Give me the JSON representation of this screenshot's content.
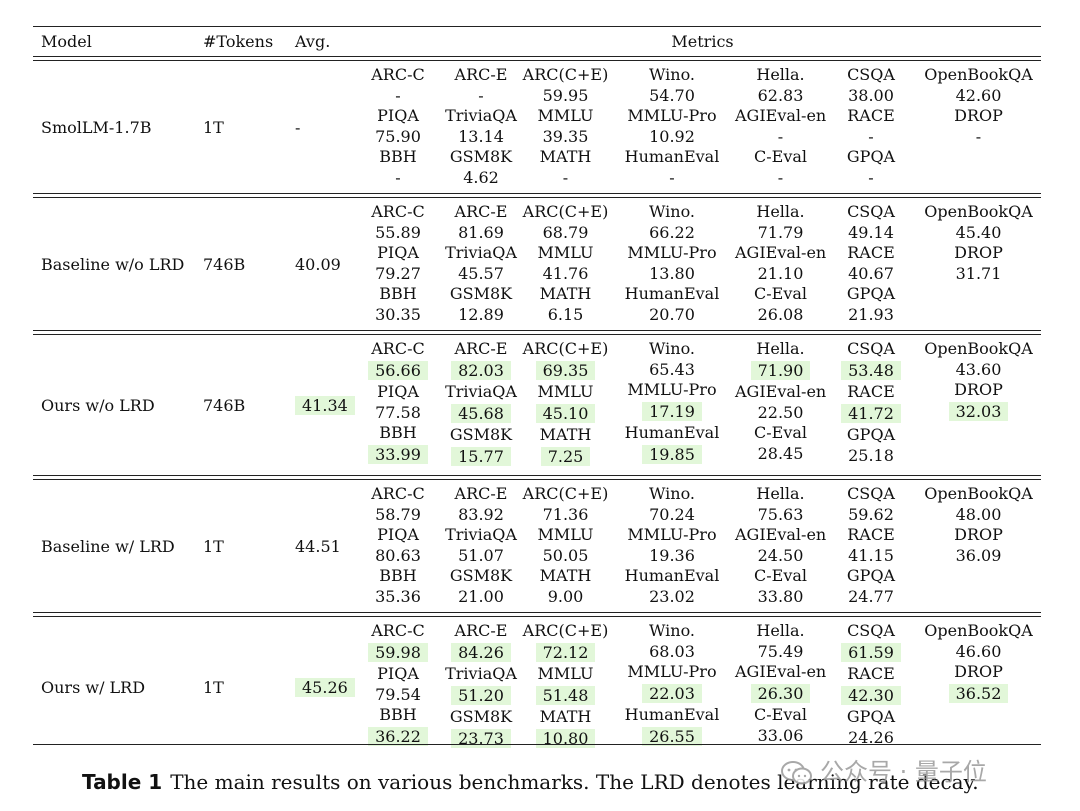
{
  "table": {
    "headers": {
      "model": "Model",
      "tokens": "#Tokens",
      "avg": "Avg.",
      "metrics": "Metrics"
    },
    "rows": [
      {
        "model": "SmolLM-1.7B",
        "tokens": "1T",
        "avg": "-",
        "avg_hl": false,
        "metrics": [
          [
            {
              "n": "ARC-C",
              "v": "-"
            },
            {
              "n": "ARC-E",
              "v": "-"
            },
            {
              "n": "ARC(C+E)",
              "v": "59.95"
            },
            {
              "n": "Wino.",
              "v": "54.70"
            },
            {
              "n": "Hella.",
              "v": "62.83"
            },
            {
              "n": "CSQA",
              "v": "38.00"
            },
            {
              "n": "OpenBookQA",
              "v": "42.60"
            }
          ],
          [
            {
              "n": "PIQA",
              "v": "75.90"
            },
            {
              "n": "TriviaQA",
              "v": "13.14"
            },
            {
              "n": "MMLU",
              "v": "39.35"
            },
            {
              "n": "MMLU-Pro",
              "v": "10.92"
            },
            {
              "n": "AGIEval-en",
              "v": "-"
            },
            {
              "n": "RACE",
              "v": "-"
            },
            {
              "n": "DROP",
              "v": "-"
            }
          ],
          [
            {
              "n": "BBH",
              "v": "-"
            },
            {
              "n": "GSM8K",
              "v": "4.62"
            },
            {
              "n": "MATH",
              "v": "-"
            },
            {
              "n": "HumanEval",
              "v": "-"
            },
            {
              "n": "C-Eval",
              "v": "-"
            },
            {
              "n": "GPQA",
              "v": "-"
            }
          ]
        ]
      },
      {
        "model": "Baseline w/o LRD",
        "tokens": "746B",
        "avg": "40.09",
        "avg_hl": false,
        "metrics": [
          [
            {
              "n": "ARC-C",
              "v": "55.89"
            },
            {
              "n": "ARC-E",
              "v": "81.69"
            },
            {
              "n": "ARC(C+E)",
              "v": "68.79"
            },
            {
              "n": "Wino.",
              "v": "66.22"
            },
            {
              "n": "Hella.",
              "v": "71.79"
            },
            {
              "n": "CSQA",
              "v": "49.14"
            },
            {
              "n": "OpenBookQA",
              "v": "45.40"
            }
          ],
          [
            {
              "n": "PIQA",
              "v": "79.27"
            },
            {
              "n": "TriviaQA",
              "v": "45.57"
            },
            {
              "n": "MMLU",
              "v": "41.76"
            },
            {
              "n": "MMLU-Pro",
              "v": "13.80"
            },
            {
              "n": "AGIEval-en",
              "v": "21.10"
            },
            {
              "n": "RACE",
              "v": "40.67"
            },
            {
              "n": "DROP",
              "v": "31.71"
            }
          ],
          [
            {
              "n": "BBH",
              "v": "30.35"
            },
            {
              "n": "GSM8K",
              "v": "12.89"
            },
            {
              "n": "MATH",
              "v": "6.15"
            },
            {
              "n": "HumanEval",
              "v": "20.70"
            },
            {
              "n": "C-Eval",
              "v": "26.08"
            },
            {
              "n": "GPQA",
              "v": "21.93"
            }
          ]
        ]
      },
      {
        "model": "Ours w/o LRD",
        "tokens": "746B",
        "avg": "41.34",
        "avg_hl": true,
        "metrics": [
          [
            {
              "n": "ARC-C",
              "v": "56.66",
              "hl": true
            },
            {
              "n": "ARC-E",
              "v": "82.03",
              "hl": true
            },
            {
              "n": "ARC(C+E)",
              "v": "69.35",
              "hl": true
            },
            {
              "n": "Wino.",
              "v": "65.43"
            },
            {
              "n": "Hella.",
              "v": "71.90",
              "hl": true
            },
            {
              "n": "CSQA",
              "v": "53.48",
              "hl": true
            },
            {
              "n": "OpenBookQA",
              "v": "43.60"
            }
          ],
          [
            {
              "n": "PIQA",
              "v": "77.58"
            },
            {
              "n": "TriviaQA",
              "v": "45.68",
              "hl": true
            },
            {
              "n": "MMLU",
              "v": "45.10",
              "hl": true
            },
            {
              "n": "MMLU-Pro",
              "v": "17.19",
              "hl": true
            },
            {
              "n": "AGIEval-en",
              "v": "22.50"
            },
            {
              "n": "RACE",
              "v": "41.72",
              "hl": true
            },
            {
              "n": "DROP",
              "v": "32.03",
              "hl": true
            }
          ],
          [
            {
              "n": "BBH",
              "v": "33.99",
              "hl": true
            },
            {
              "n": "GSM8K",
              "v": "15.77",
              "hl": true
            },
            {
              "n": "MATH",
              "v": "7.25",
              "hl": true
            },
            {
              "n": "HumanEval",
              "v": "19.85",
              "hl": true
            },
            {
              "n": "C-Eval",
              "v": "28.45"
            },
            {
              "n": "GPQA",
              "v": "25.18"
            }
          ]
        ]
      },
      {
        "model": "Baseline w/ LRD",
        "tokens": "1T",
        "avg": "44.51",
        "avg_hl": false,
        "metrics": [
          [
            {
              "n": "ARC-C",
              "v": "58.79"
            },
            {
              "n": "ARC-E",
              "v": "83.92"
            },
            {
              "n": "ARC(C+E)",
              "v": "71.36"
            },
            {
              "n": "Wino.",
              "v": "70.24"
            },
            {
              "n": "Hella.",
              "v": "75.63"
            },
            {
              "n": "CSQA",
              "v": "59.62"
            },
            {
              "n": "OpenBookQA",
              "v": "48.00"
            }
          ],
          [
            {
              "n": "PIQA",
              "v": "80.63"
            },
            {
              "n": "TriviaQA",
              "v": "51.07"
            },
            {
              "n": "MMLU",
              "v": "50.05"
            },
            {
              "n": "MMLU-Pro",
              "v": "19.36"
            },
            {
              "n": "AGIEval-en",
              "v": "24.50"
            },
            {
              "n": "RACE",
              "v": "41.15"
            },
            {
              "n": "DROP",
              "v": "36.09"
            }
          ],
          [
            {
              "n": "BBH",
              "v": "35.36"
            },
            {
              "n": "GSM8K",
              "v": "21.00"
            },
            {
              "n": "MATH",
              "v": "9.00"
            },
            {
              "n": "HumanEval",
              "v": "23.02"
            },
            {
              "n": "C-Eval",
              "v": "33.80"
            },
            {
              "n": "GPQA",
              "v": "24.77"
            }
          ]
        ]
      },
      {
        "model": "Ours w/ LRD",
        "tokens": "1T",
        "avg": "45.26",
        "avg_hl": true,
        "metrics": [
          [
            {
              "n": "ARC-C",
              "v": "59.98",
              "hl": true
            },
            {
              "n": "ARC-E",
              "v": "84.26",
              "hl": true
            },
            {
              "n": "ARC(C+E)",
              "v": "72.12",
              "hl": true
            },
            {
              "n": "Wino.",
              "v": "68.03"
            },
            {
              "n": "Hella.",
              "v": "75.49"
            },
            {
              "n": "CSQA",
              "v": "61.59",
              "hl": true
            },
            {
              "n": "OpenBookQA",
              "v": "46.60"
            }
          ],
          [
            {
              "n": "PIQA",
              "v": "79.54"
            },
            {
              "n": "TriviaQA",
              "v": "51.20",
              "hl": true
            },
            {
              "n": "MMLU",
              "v": "51.48",
              "hl": true
            },
            {
              "n": "MMLU-Pro",
              "v": "22.03",
              "hl": true
            },
            {
              "n": "AGIEval-en",
              "v": "26.30",
              "hl": true
            },
            {
              "n": "RACE",
              "v": "42.30",
              "hl": true
            },
            {
              "n": "DROP",
              "v": "36.52",
              "hl": true
            }
          ],
          [
            {
              "n": "BBH",
              "v": "36.22",
              "hl": true
            },
            {
              "n": "GSM8K",
              "v": "23.73",
              "hl": true
            },
            {
              "n": "MATH",
              "v": "10.80",
              "hl": true
            },
            {
              "n": "HumanEval",
              "v": "26.55",
              "hl": true
            },
            {
              "n": "C-Eval",
              "v": "33.06"
            },
            {
              "n": "GPQA",
              "v": "24.26"
            }
          ]
        ]
      }
    ]
  },
  "caption": {
    "label": "Table 1",
    "text": "The main results on various benchmarks. The LRD denotes learning rate decay."
  },
  "watermark": {
    "text": "公众号 · 量子位",
    "icon": "wechat-icon"
  },
  "colors": {
    "highlight": "#e2f7d9",
    "rule": "#222222"
  }
}
